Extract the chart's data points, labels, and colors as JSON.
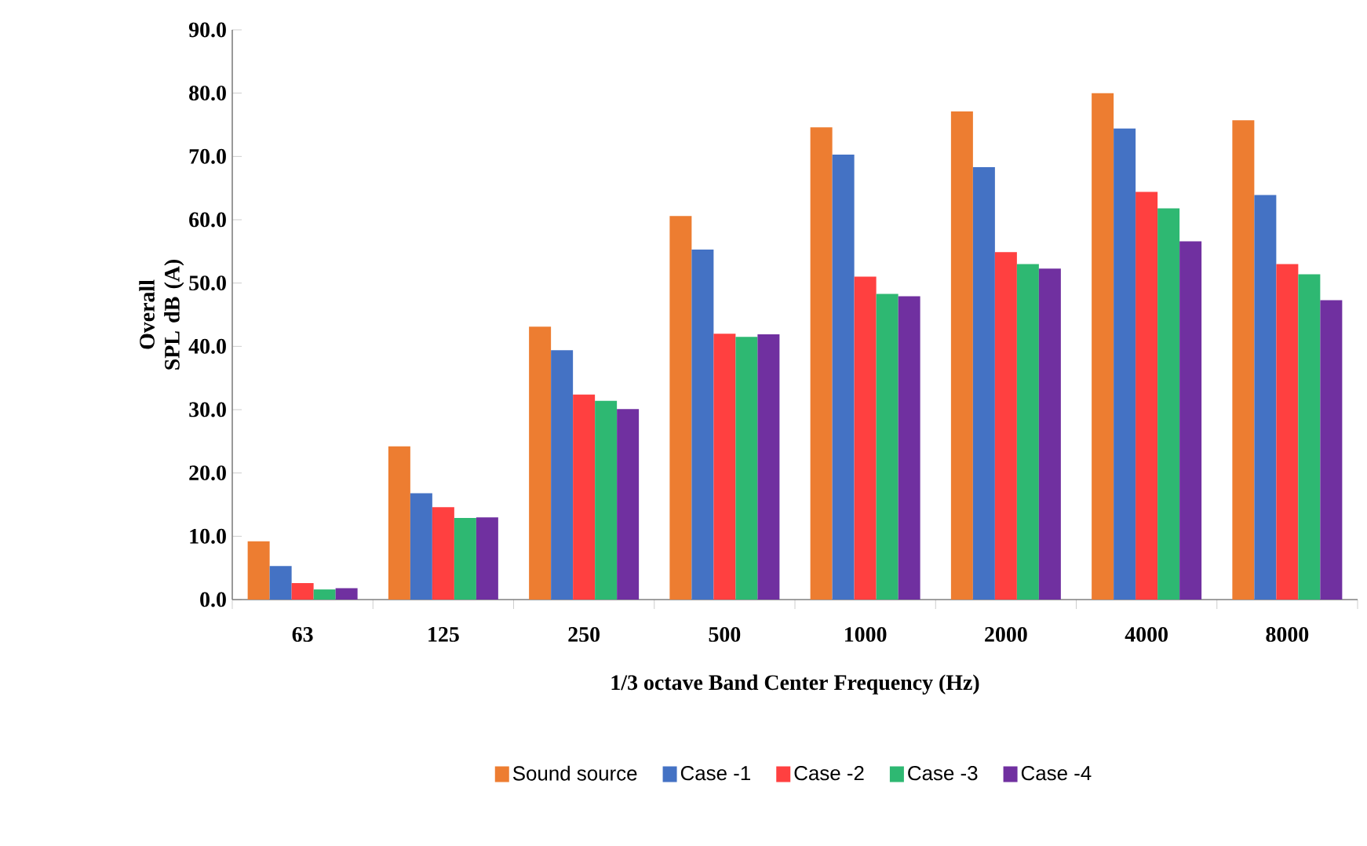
{
  "chart_data": {
    "type": "bar",
    "xlabel": "1/3 octave  Band  Center Frequency  (Hz)",
    "ylabel": "Overall SPL dB (A)",
    "categories": [
      "63",
      "125",
      "250",
      "500",
      "1000",
      "2000",
      "4000",
      "8000"
    ],
    "series": [
      {
        "name": "Sound source",
        "color": "#ed7d31",
        "values": [
          9.2,
          24.2,
          43.1,
          60.6,
          74.6,
          77.1,
          80.0,
          75.7
        ]
      },
      {
        "name": "Case -1",
        "color": "#4472c4",
        "values": [
          5.3,
          16.8,
          39.4,
          55.3,
          70.3,
          68.3,
          74.4,
          63.9
        ]
      },
      {
        "name": "Case -2",
        "color": "#ff4040",
        "values": [
          2.6,
          14.6,
          32.4,
          42.0,
          51.0,
          54.9,
          64.4,
          53.0
        ]
      },
      {
        "name": "Case -3",
        "color": "#2eb872",
        "values": [
          1.6,
          12.9,
          31.4,
          41.5,
          48.3,
          53.0,
          61.8,
          51.4
        ]
      },
      {
        "name": "Case -4",
        "color": "#7030a0",
        "values": [
          1.8,
          13.0,
          30.1,
          41.9,
          47.9,
          52.3,
          56.6,
          47.3
        ]
      }
    ],
    "ylim": [
      0,
      90
    ],
    "yticks": [
      {
        "value": 0,
        "label": "0.0"
      },
      {
        "value": 10,
        "label": "10.0"
      },
      {
        "value": 20,
        "label": "20.0"
      },
      {
        "value": 30,
        "label": "30.0"
      },
      {
        "value": 40,
        "label": "40.0"
      },
      {
        "value": 50,
        "label": "50.0"
      },
      {
        "value": 60,
        "label": "60.0"
      },
      {
        "value": 70,
        "label": "70.0"
      },
      {
        "value": 80,
        "label": "80.0"
      },
      {
        "value": 90,
        "label": "90.0"
      }
    ],
    "legend": "bottom"
  }
}
